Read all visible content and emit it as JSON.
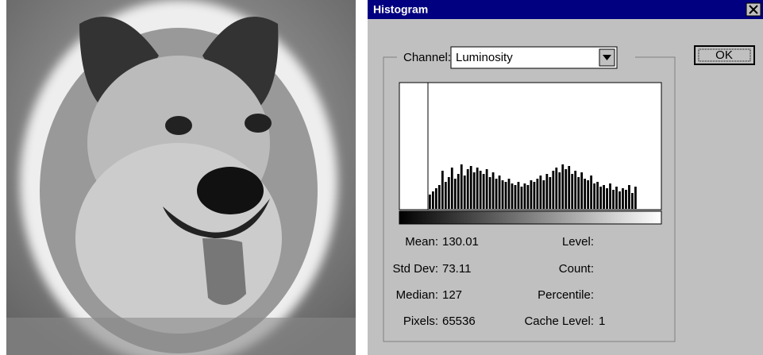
{
  "title_bar": {
    "title": "Histogram"
  },
  "channel": {
    "label": "Channel:",
    "value": "Luminosity"
  },
  "ok_button": "OK",
  "histogram": {
    "values": [
      18,
      22,
      26,
      30,
      48,
      34,
      40,
      52,
      38,
      44,
      56,
      42,
      50,
      54,
      46,
      52,
      48,
      44,
      50,
      40,
      46,
      38,
      42,
      36,
      34,
      38,
      32,
      30,
      34,
      28,
      32,
      30,
      36,
      34,
      38,
      42,
      36,
      44,
      40,
      48,
      52,
      46,
      56,
      50,
      54,
      44,
      48,
      40,
      46,
      38,
      36,
      42,
      32,
      34,
      28,
      30,
      26,
      32,
      24,
      28,
      22,
      26,
      24,
      30,
      20,
      28
    ]
  },
  "stats": [
    {
      "label": "Mean:",
      "value": 130.01
    },
    {
      "label": "Std Dev:",
      "value": 73.11
    },
    {
      "label": "Median:",
      "value": 127
    },
    {
      "label": "Pixels:",
      "value": 65536
    }
  ],
  "info": [
    {
      "label": "Level:"
    },
    {
      "label": "Count:"
    },
    {
      "label": "Percentile:"
    },
    {
      "label": "Cache Level:",
      "value": 1
    }
  ]
}
